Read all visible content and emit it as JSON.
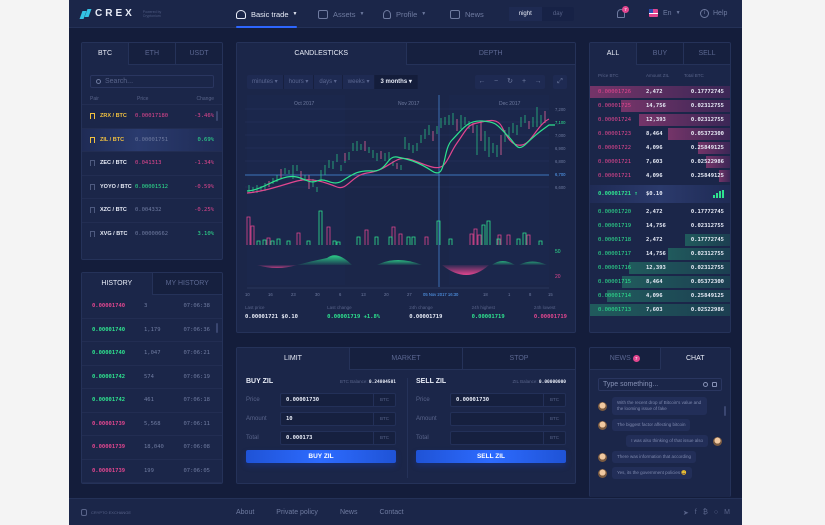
{
  "header": {
    "logo": "CREX",
    "logo_sub": "Powered by Cryptonium",
    "nav": [
      {
        "label": "Basic trade",
        "icon": "speedometer-icon",
        "active": true
      },
      {
        "label": "Assets",
        "icon": "wallet-icon"
      },
      {
        "label": "Profile",
        "icon": "user-icon"
      },
      {
        "label": "News",
        "icon": "newspaper-icon"
      }
    ],
    "theme": {
      "night": "night",
      "day": "day",
      "selected": "night"
    },
    "notifications_count": "7",
    "language": "En",
    "help": "Help"
  },
  "pairs": {
    "tabs": [
      "BTC",
      "ETH",
      "USDT"
    ],
    "active_tab": "BTC",
    "search_placeholder": "Search...",
    "columns": [
      "Pair",
      "Price",
      "Change"
    ],
    "rows": [
      {
        "pair": "ZRX / BTC",
        "price": "0.00017180",
        "change": "-3.46%",
        "starred": true,
        "price_color": "pink",
        "change_color": "pink"
      },
      {
        "pair": "ZIL / BTC",
        "price": "0.00001751",
        "change": "0.69%",
        "starred": true,
        "price_color": "muted",
        "change_color": "green",
        "active": true
      },
      {
        "pair": "ZEC / BTC",
        "price": "0.041313",
        "change": "-1.34%",
        "starred": false,
        "price_color": "pink",
        "change_color": "pink"
      },
      {
        "pair": "YOYO / BTC",
        "price": "0.00001512",
        "change": "-0.59%",
        "starred": false,
        "price_color": "green",
        "change_color": "pink"
      },
      {
        "pair": "XZC / BTC",
        "price": "0.004332",
        "change": "-0.25%",
        "starred": false,
        "price_color": "muted",
        "change_color": "pink"
      },
      {
        "pair": "XVG / BTC",
        "price": "0.00000662",
        "change": "3.10%",
        "starred": false,
        "price_color": "muted",
        "change_color": "green"
      }
    ]
  },
  "history": {
    "tabs": [
      "HISTORY",
      "MY HISTORY"
    ],
    "rows": [
      {
        "price": "0.00001740",
        "amount": "3",
        "time": "07:06:38",
        "color": "pink"
      },
      {
        "price": "0.00001740",
        "amount": "1,179",
        "time": "07:06:36",
        "color": "green"
      },
      {
        "price": "0.00001740",
        "amount": "1,047",
        "time": "07:06:21",
        "color": "green"
      },
      {
        "price": "0.00001742",
        "amount": "574",
        "time": "07:06:19",
        "color": "green"
      },
      {
        "price": "0.00001742",
        "amount": "461",
        "time": "07:06:18",
        "color": "green"
      },
      {
        "price": "0.00001739",
        "amount": "5,568",
        "time": "07:06:11",
        "color": "pink"
      },
      {
        "price": "0.00001739",
        "amount": "18,040",
        "time": "07:06:08",
        "color": "pink"
      },
      {
        "price": "0.00001739",
        "amount": "199",
        "time": "07:06:05",
        "color": "pink"
      }
    ]
  },
  "chart": {
    "tabs": [
      "CANDLESTICKS",
      "DEPTH"
    ],
    "intervals": [
      "minutes",
      "hours",
      "days",
      "weeks",
      "3 months"
    ],
    "active_interval": "3 months",
    "zoom_controls": [
      "←",
      "−",
      "↻",
      "+",
      "→"
    ],
    "fullscreen": "⤢",
    "months": [
      "Oct 2017",
      "Nov 2017",
      "Dec 2017"
    ],
    "price_axis": [
      "7,200",
      "7,100",
      "7,000",
      "6,900",
      "6,800",
      "6,700",
      "6,600"
    ],
    "highlight_price": "6,700",
    "current_price_label": "7,100",
    "osc_axis": [
      "50",
      "20"
    ],
    "x_axis": [
      "10",
      "16",
      "23",
      "30",
      "6",
      "13",
      "20",
      "27",
      "05 Nov 2017 16:30",
      "18",
      "1",
      "8",
      "15"
    ],
    "stats": [
      {
        "label": "Last price",
        "value": "0.00001721 $0.10",
        "color": "white"
      },
      {
        "label": "Last change",
        "value": "0.00001719 +1.8%",
        "color": "green"
      },
      {
        "label": "24h change",
        "value": "0.00001719",
        "color": "white"
      },
      {
        "label": "24h highest",
        "value": "0.00001719",
        "color": "green"
      },
      {
        "label": "24h lowest",
        "value": "0.00001719",
        "color": "pink"
      }
    ]
  },
  "orderbook": {
    "tabs": [
      "ALL",
      "BUY",
      "SELL"
    ],
    "columns": [
      "Price BTC",
      "Amount ZIL",
      "Total BTC"
    ],
    "asks": [
      {
        "price": "0.00001726",
        "amount": "2,472",
        "total": "0.17772745",
        "depth": 100
      },
      {
        "price": "0.00001725",
        "amount": "14,756",
        "total": "0.02312755",
        "depth": 78
      },
      {
        "price": "0.00001724",
        "amount": "12,393",
        "total": "0.02312755",
        "depth": 65
      },
      {
        "price": "0.00001723",
        "amount": "8,464",
        "total": "0.05372300",
        "depth": 44
      },
      {
        "price": "0.00001722",
        "amount": "4,096",
        "total": "0.25849125",
        "depth": 23
      },
      {
        "price": "0.00001721",
        "amount": "7,603",
        "total": "0.02522986",
        "depth": 17
      },
      {
        "price": "0.00001721",
        "amount": "4,096",
        "total": "0.25849125",
        "depth": 8
      }
    ],
    "mid": {
      "price": "0.00001721 ↑",
      "usd": "$0.10"
    },
    "bids": [
      {
        "price": "0.00001720",
        "amount": "2,472",
        "total": "0.17772745",
        "depth": 0
      },
      {
        "price": "0.00001719",
        "amount": "14,756",
        "total": "0.02312755",
        "depth": 0
      },
      {
        "price": "0.00001718",
        "amount": "2,472",
        "total": "0.17772745",
        "depth": 32
      },
      {
        "price": "0.00001717",
        "amount": "14,756",
        "total": "0.02312755",
        "depth": 44
      },
      {
        "price": "0.00001716",
        "amount": "12,393",
        "total": "0.02312755",
        "depth": 72
      },
      {
        "price": "0.00001715",
        "amount": "8,464",
        "total": "0.05372300",
        "depth": 77
      },
      {
        "price": "0.00001714",
        "amount": "4,096",
        "total": "0.25849125",
        "depth": 88
      },
      {
        "price": "0.00001713",
        "amount": "7,603",
        "total": "0.02522986",
        "depth": 100
      }
    ]
  },
  "trade": {
    "tabs": [
      "LIMIT",
      "MARKET",
      "STOP"
    ],
    "buy": {
      "title": "BUY ZIL",
      "balance_label": "BTC Balance:",
      "balance": "0.24804501",
      "fields": [
        {
          "label": "Price",
          "value": "0.00001730",
          "unit": "BTC"
        },
        {
          "label": "Amount",
          "value": "10",
          "unit": "BTC"
        },
        {
          "label": "Total",
          "value": "0.000173",
          "unit": "BTC"
        }
      ],
      "button": "BUY ZIL"
    },
    "sell": {
      "title": "SELL ZIL",
      "balance_label": "ZIL Balance:",
      "balance": "0.00000000",
      "fields": [
        {
          "label": "Price",
          "value": "0.00001730",
          "unit": "BTC"
        },
        {
          "label": "Amount",
          "value": "",
          "unit": "BTC"
        },
        {
          "label": "Total",
          "value": "",
          "unit": "BTC"
        }
      ],
      "button": "SELL ZIL"
    }
  },
  "chat": {
    "tabs": [
      "NEWS",
      "CHAT"
    ],
    "news_badge": "7",
    "input_placeholder": "Type something...",
    "messages": [
      {
        "text": "With the recent drop of Bitcoin's value and the looming issue of fake",
        "side": "left"
      },
      {
        "text": "The biggest factor affecting bitcoin",
        "side": "left"
      },
      {
        "text": "I was also thinking of that issue also",
        "side": "right"
      },
      {
        "text": "There was information that according",
        "side": "left"
      },
      {
        "text": "Yes, its the government policies 😀",
        "side": "left"
      }
    ]
  },
  "footer": {
    "brand": "CRYPTO EXCHANGE",
    "links": [
      "About",
      "Private policy",
      "News",
      "Contact"
    ],
    "social": [
      "telegram-icon",
      "facebook-icon",
      "bitcoin-icon",
      "github-icon",
      "medium-icon"
    ]
  },
  "colors": {
    "background": "#141d3b",
    "panel": "#1b2649",
    "accent": "#2d6bff",
    "buy": "#2ee38f",
    "sell": "#e2468f"
  }
}
